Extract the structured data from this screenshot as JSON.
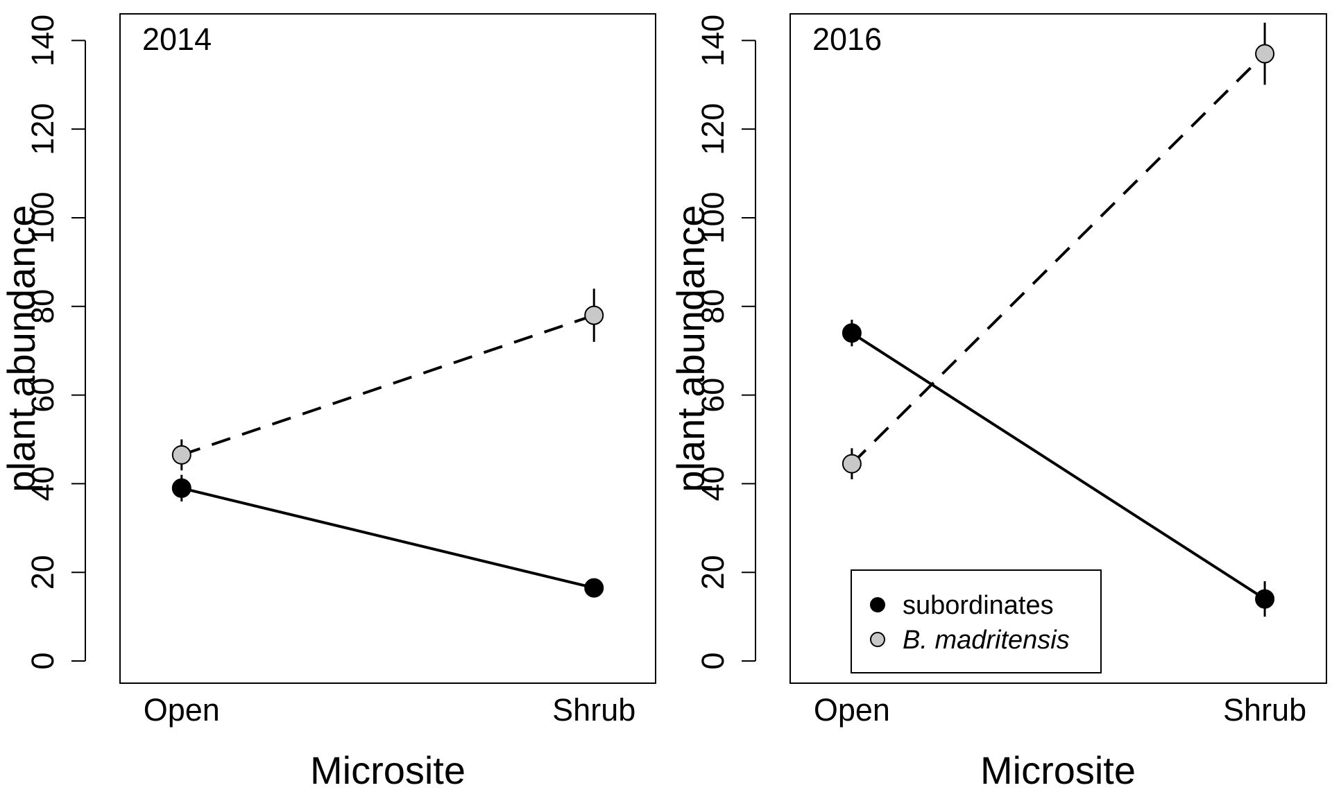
{
  "chart_data": [
    {
      "type": "line",
      "panel_label": "2014",
      "xlabel": "Microsite",
      "ylabel": "plant abundance",
      "categories": [
        "Open",
        "Shrub"
      ],
      "ylim": [
        -5,
        146
      ],
      "yticks": [
        0,
        20,
        40,
        60,
        80,
        100,
        120,
        140
      ],
      "grid": false,
      "series": [
        {
          "name": "subordinates",
          "values": [
            39,
            16.5
          ],
          "err_low": [
            36,
            16.5
          ],
          "err_high": [
            42,
            16.5
          ],
          "color": "#000000",
          "marker_fill": "#000000",
          "line_style": "solid"
        },
        {
          "name": "B. madritensis",
          "values": [
            46.5,
            78
          ],
          "err_low": [
            43,
            72
          ],
          "err_high": [
            50,
            84
          ],
          "color": "#000000",
          "marker_fill": "#c8c8c8",
          "line_style": "dashed"
        }
      ]
    },
    {
      "type": "line",
      "panel_label": "2016",
      "xlabel": "Microsite",
      "ylabel": "plant abundance",
      "categories": [
        "Open",
        "Shrub"
      ],
      "ylim": [
        -5,
        146
      ],
      "yticks": [
        0,
        20,
        40,
        60,
        80,
        100,
        120,
        140
      ],
      "grid": false,
      "legend_position": "bottom-left",
      "series": [
        {
          "name": "subordinates",
          "values": [
            74,
            14
          ],
          "err_low": [
            71,
            10
          ],
          "err_high": [
            77,
            18
          ],
          "color": "#000000",
          "marker_fill": "#000000",
          "line_style": "solid"
        },
        {
          "name": "B. madritensis",
          "values": [
            44.5,
            137
          ],
          "err_low": [
            41,
            130
          ],
          "err_high": [
            48,
            144
          ],
          "color": "#000000",
          "marker_fill": "#c8c8c8",
          "line_style": "dashed"
        }
      ]
    }
  ],
  "legend": {
    "items": [
      {
        "label": "subordinates",
        "marker_fill": "#000000"
      },
      {
        "label": "B. madritensis",
        "marker_fill": "#c8c8c8",
        "italic": true
      }
    ]
  }
}
